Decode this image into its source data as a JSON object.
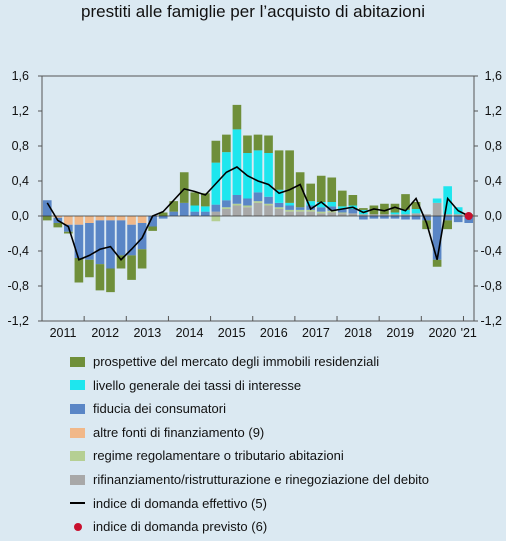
{
  "title": "prestiti alle famiglie per l’acquisto di abitazioni",
  "colors": {
    "prospettive": "#6f8f3a",
    "tassi": "#1ee6ee",
    "fiducia": "#5a86c6",
    "altre_fonti": "#f1b889",
    "regime": "#b5cf93",
    "rifinanziamento": "#a8a8a8",
    "line": "#000000",
    "dot": "#c8102e"
  },
  "legend": {
    "prospettive": "prospettive del mercato degli immobili residenziali",
    "tassi": "livello generale dei tassi di interesse",
    "fiducia": "fiducia dei consumatori",
    "altre_fonti": "altre fonti di finanziamento (9)",
    "regime": "regime regolamentare o tributario abitazioni",
    "rifinanziamento": "rifinanziamento/ristrutturazione e rinegoziazione del debito",
    "effettivo": "indice di domanda effettivo (5)",
    "previsto": "indice di domanda previsto (6)"
  },
  "chart_data": {
    "type": "bar",
    "stacked": true,
    "ylim": [
      -1.2,
      1.6
    ],
    "yticks": [
      "-1,2",
      "-0,8",
      "-0,4",
      "0,0",
      "0,4",
      "0,8",
      "1,2",
      "1,6"
    ],
    "ytick_values": [
      -1.2,
      -0.8,
      -0.4,
      0.0,
      0.4,
      0.8,
      1.2,
      1.6
    ],
    "year_labels": [
      "2011",
      "2012",
      "2013",
      "2014",
      "2015",
      "2016",
      "2017",
      "2018",
      "2019",
      "2020",
      "'21"
    ],
    "grid": false,
    "categories": [
      "2011Q1",
      "2011Q2",
      "2011Q3",
      "2011Q4",
      "2012Q1",
      "2012Q2",
      "2012Q3",
      "2012Q4",
      "2013Q1",
      "2013Q2",
      "2013Q3",
      "2013Q4",
      "2014Q1",
      "2014Q2",
      "2014Q3",
      "2014Q4",
      "2015Q1",
      "2015Q2",
      "2015Q3",
      "2015Q4",
      "2016Q1",
      "2016Q2",
      "2016Q3",
      "2016Q4",
      "2017Q1",
      "2017Q2",
      "2017Q3",
      "2017Q4",
      "2018Q1",
      "2018Q2",
      "2018Q3",
      "2018Q4",
      "2019Q1",
      "2019Q2",
      "2019Q3",
      "2019Q4",
      "2020Q1",
      "2020Q2",
      "2020Q3",
      "2020Q4",
      "2021Q1"
    ],
    "series": [
      {
        "name": "rifinanziamento/ristrutturazione e rinegoziazione del debito",
        "key": "rifinanziamento",
        "values": [
          0,
          0,
          0,
          0,
          0,
          0,
          0,
          0,
          0,
          0,
          0,
          0,
          0,
          0,
          0,
          0,
          0.05,
          0.08,
          0.12,
          0.1,
          0.15,
          0.12,
          0.08,
          0.05,
          0.05,
          0.05,
          0.03,
          0.04,
          0.03,
          0.03,
          0.02,
          0.02,
          0.02,
          0.02,
          0.02,
          0.03,
          0.02,
          0.15,
          0.02,
          0.02,
          0
        ]
      },
      {
        "name": "regime regolamentare o tributario abitazioni",
        "key": "regime",
        "values": [
          0,
          0,
          0,
          0,
          0,
          0,
          0,
          0,
          0,
          0,
          0,
          0,
          0,
          0,
          0,
          0,
          -0.06,
          0.02,
          0.02,
          0.02,
          0.02,
          0.02,
          0.02,
          0.02,
          0.02,
          0.02,
          0.02,
          0.02,
          0.01,
          0,
          0,
          0,
          0,
          0,
          0,
          0,
          0,
          0,
          0,
          0,
          0
        ]
      },
      {
        "name": "altre fonti di finanziamento (9)",
        "key": "altre_fonti",
        "values": [
          0,
          -0.02,
          -0.1,
          -0.1,
          -0.08,
          -0.05,
          -0.05,
          -0.05,
          -0.1,
          -0.08,
          0,
          0,
          0,
          0,
          0,
          0,
          0,
          0,
          0,
          0,
          0,
          0,
          0,
          0,
          0,
          0,
          0,
          0,
          0,
          0,
          0,
          0,
          0,
          0,
          0,
          0,
          0,
          0,
          0,
          0,
          0
        ]
      },
      {
        "name": "fiducia dei consumatori",
        "key": "fiducia",
        "values": [
          0.18,
          -0.06,
          -0.08,
          -0.38,
          -0.42,
          -0.5,
          -0.55,
          -0.4,
          -0.35,
          -0.3,
          -0.12,
          -0.03,
          0.05,
          0.15,
          0.05,
          0.05,
          0.08,
          0.08,
          0.1,
          0.08,
          0.1,
          0.08,
          0.05,
          0.05,
          0.03,
          0.05,
          0.05,
          0.05,
          0.04,
          0.05,
          -0.04,
          -0.03,
          -0.03,
          -0.03,
          -0.04,
          -0.04,
          -0.05,
          -0.5,
          -0.05,
          -0.07,
          -0.08
        ]
      },
      {
        "name": "livello generale dei tassi di interesse",
        "key": "tassi",
        "values": [
          0,
          0,
          0,
          0,
          0,
          0,
          0,
          0,
          0,
          0,
          0,
          0,
          0,
          0,
          0.07,
          0.06,
          0.48,
          0.55,
          0.75,
          0.52,
          0.48,
          0.5,
          0.15,
          0.03,
          0,
          0.05,
          0.06,
          0.05,
          0.03,
          0.04,
          0.05,
          0,
          0,
          0.02,
          0.05,
          0.05,
          0,
          0.05,
          0.32,
          0.08,
          0
        ]
      },
      {
        "name": "prospettive del mercato degli immobili residenziali",
        "key": "prospettive",
        "values": [
          -0.05,
          -0.05,
          -0.02,
          -0.28,
          -0.2,
          -0.3,
          -0.27,
          -0.15,
          -0.28,
          -0.22,
          -0.05,
          0.04,
          0.12,
          0.35,
          0.15,
          0.15,
          0.25,
          0.2,
          0.28,
          0.2,
          0.18,
          0.2,
          0.45,
          0.6,
          0.4,
          0.2,
          0.3,
          0.28,
          0.18,
          0.12,
          0.02,
          0.1,
          0.12,
          0.1,
          0.18,
          0.08,
          -0.1,
          -0.08,
          -0.1,
          0,
          0.02
        ]
      }
    ],
    "line": {
      "name": "indice di domanda effettivo (5)",
      "key": "effettivo",
      "values": [
        0.15,
        -0.05,
        -0.12,
        -0.5,
        -0.45,
        -0.38,
        -0.35,
        -0.5,
        -0.38,
        -0.25,
        0,
        0.05,
        0.18,
        0.31,
        0.28,
        0.24,
        0.37,
        0.5,
        0.56,
        0.46,
        0.4,
        0.36,
        0.26,
        0.3,
        0.36,
        0.08,
        0.16,
        0.06,
        0.08,
        0.1,
        0.04,
        0.08,
        0.06,
        0.1,
        0.06,
        0.2,
        -0.08,
        -0.5,
        0.2,
        0.06,
        0
      ]
    },
    "forecast": {
      "name": "indice di domanda previsto (6)",
      "key": "previsto",
      "category": "2021Q1",
      "value": 0.0
    }
  }
}
